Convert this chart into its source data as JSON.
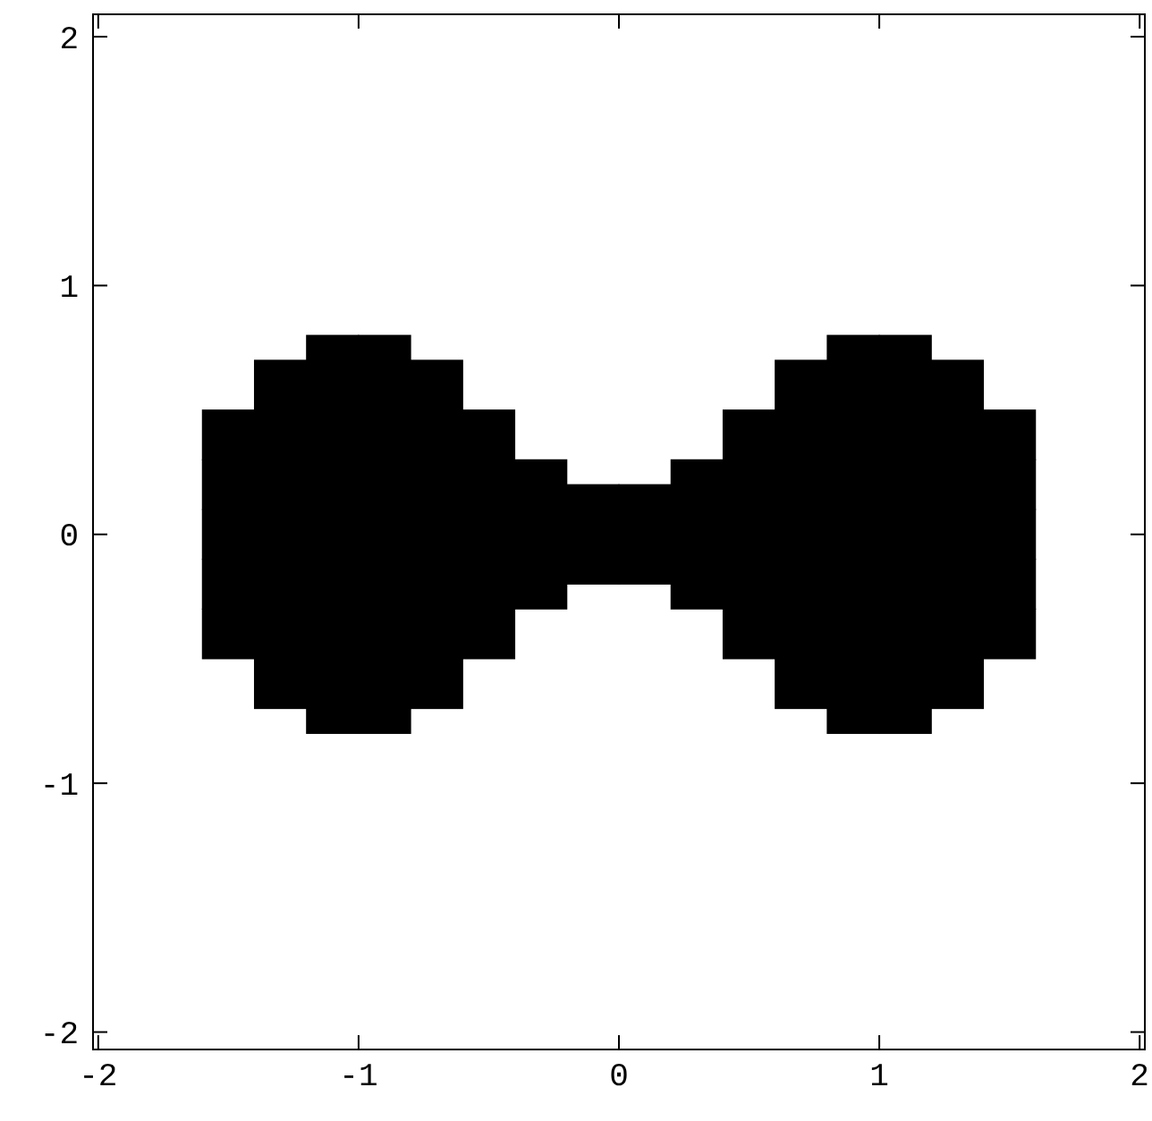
{
  "chart_data": {
    "type": "scatter",
    "marker": "square",
    "xlim": [
      -2.02,
      2.02
    ],
    "ylim": [
      -2.07,
      2.09
    ],
    "xticks": [
      -2,
      -1,
      0,
      1,
      2
    ],
    "yticks": [
      -2,
      -1,
      0,
      1,
      2
    ],
    "grid": false,
    "series": [
      {
        "color": "#000000",
        "x": [
          -1.5,
          -1.5,
          -1.5,
          -1.5,
          -1.5,
          -1.3,
          -1.3,
          -1.3,
          -1.3,
          -1.3,
          -1.3,
          -1.3,
          -1.1,
          -1.1,
          -1.1,
          -1.1,
          -1.1,
          -1.1,
          -1.1,
          -1.1,
          -0.9,
          -0.9,
          -0.9,
          -0.9,
          -0.9,
          -0.9,
          -0.9,
          -0.9,
          -0.7,
          -0.7,
          -0.7,
          -0.7,
          -0.7,
          -0.7,
          -0.7,
          -0.5,
          -0.5,
          -0.5,
          -0.5,
          -0.5,
          -0.3,
          -0.3,
          -0.3,
          -0.1,
          -0.1,
          0.1,
          0.1,
          0.3,
          0.3,
          0.3,
          0.5,
          0.5,
          0.5,
          0.5,
          0.5,
          0.7,
          0.7,
          0.7,
          0.7,
          0.7,
          0.7,
          0.7,
          0.9,
          0.9,
          0.9,
          0.9,
          0.9,
          0.9,
          0.9,
          0.9,
          1.1,
          1.1,
          1.1,
          1.1,
          1.1,
          1.1,
          1.1,
          1.1,
          1.3,
          1.3,
          1.3,
          1.3,
          1.3,
          1.3,
          1.3,
          1.5,
          1.5,
          1.5,
          1.5,
          1.5
        ],
        "values": [
          -0.4,
          -0.2,
          0,
          0.2,
          0.4,
          -0.6,
          -0.4,
          -0.2,
          0,
          0.2,
          0.4,
          0.6,
          -0.7,
          -0.5,
          -0.3,
          -0.1,
          0.1,
          0.3,
          0.5,
          0.7,
          -0.7,
          -0.5,
          -0.3,
          -0.1,
          0.1,
          0.3,
          0.5,
          0.7,
          -0.6,
          -0.4,
          -0.2,
          0,
          0.2,
          0.4,
          0.6,
          -0.4,
          -0.2,
          0,
          0.2,
          0.4,
          -0.2,
          0,
          0.2,
          -0.1,
          0.1,
          -0.1,
          0.1,
          -0.2,
          0,
          0.2,
          -0.4,
          -0.2,
          0,
          0.2,
          0.4,
          -0.6,
          -0.4,
          -0.2,
          0,
          0.2,
          0.4,
          0.6,
          -0.7,
          -0.5,
          -0.3,
          -0.1,
          0.1,
          0.3,
          0.5,
          0.7,
          -0.7,
          -0.5,
          -0.3,
          -0.1,
          0.1,
          0.3,
          0.5,
          0.7,
          -0.6,
          -0.4,
          -0.2,
          0,
          0.2,
          0.4,
          0.6,
          -0.4,
          -0.2,
          0,
          0.2,
          0.4
        ]
      }
    ]
  }
}
